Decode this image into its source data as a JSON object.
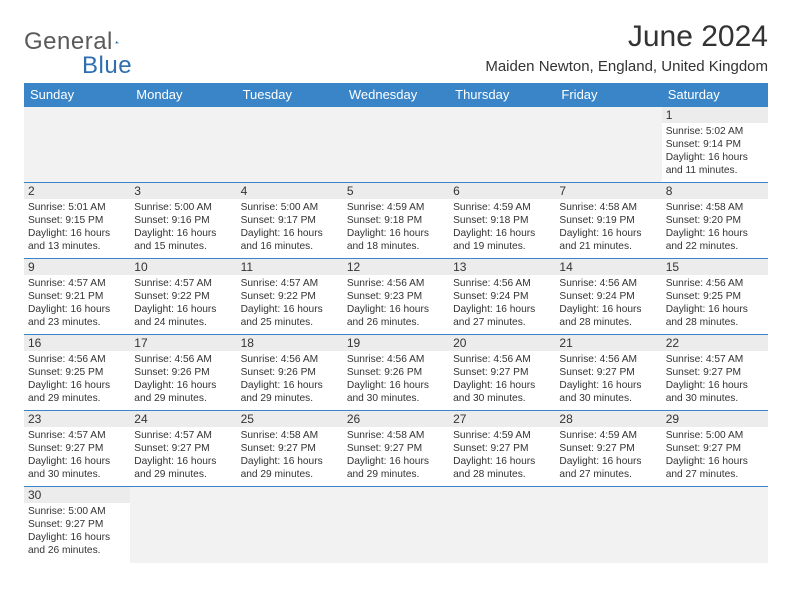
{
  "brand": {
    "text1": "General",
    "text2": "Blue"
  },
  "title": "June 2024",
  "location": "Maiden Newton, England, United Kingdom",
  "colors": {
    "header_bg": "#3a85c7",
    "header_fg": "#ffffff",
    "rule": "#3a85c7",
    "daynum_bg": "#ececec",
    "empty_bg": "#f2f2f2",
    "brand_gray": "#5a5a5a",
    "brand_blue": "#2f6fb0"
  },
  "day_headers": [
    "Sunday",
    "Monday",
    "Tuesday",
    "Wednesday",
    "Thursday",
    "Friday",
    "Saturday"
  ],
  "weeks": [
    [
      {
        "empty": true
      },
      {
        "empty": true
      },
      {
        "empty": true
      },
      {
        "empty": true
      },
      {
        "empty": true
      },
      {
        "empty": true
      },
      {
        "num": "1",
        "sunrise": "5:02 AM",
        "sunset": "9:14 PM",
        "daylight": "16 hours and 11 minutes."
      }
    ],
    [
      {
        "num": "2",
        "sunrise": "5:01 AM",
        "sunset": "9:15 PM",
        "daylight": "16 hours and 13 minutes."
      },
      {
        "num": "3",
        "sunrise": "5:00 AM",
        "sunset": "9:16 PM",
        "daylight": "16 hours and 15 minutes."
      },
      {
        "num": "4",
        "sunrise": "5:00 AM",
        "sunset": "9:17 PM",
        "daylight": "16 hours and 16 minutes."
      },
      {
        "num": "5",
        "sunrise": "4:59 AM",
        "sunset": "9:18 PM",
        "daylight": "16 hours and 18 minutes."
      },
      {
        "num": "6",
        "sunrise": "4:59 AM",
        "sunset": "9:18 PM",
        "daylight": "16 hours and 19 minutes."
      },
      {
        "num": "7",
        "sunrise": "4:58 AM",
        "sunset": "9:19 PM",
        "daylight": "16 hours and 21 minutes."
      },
      {
        "num": "8",
        "sunrise": "4:58 AM",
        "sunset": "9:20 PM",
        "daylight": "16 hours and 22 minutes."
      }
    ],
    [
      {
        "num": "9",
        "sunrise": "4:57 AM",
        "sunset": "9:21 PM",
        "daylight": "16 hours and 23 minutes."
      },
      {
        "num": "10",
        "sunrise": "4:57 AM",
        "sunset": "9:22 PM",
        "daylight": "16 hours and 24 minutes."
      },
      {
        "num": "11",
        "sunrise": "4:57 AM",
        "sunset": "9:22 PM",
        "daylight": "16 hours and 25 minutes."
      },
      {
        "num": "12",
        "sunrise": "4:56 AM",
        "sunset": "9:23 PM",
        "daylight": "16 hours and 26 minutes."
      },
      {
        "num": "13",
        "sunrise": "4:56 AM",
        "sunset": "9:24 PM",
        "daylight": "16 hours and 27 minutes."
      },
      {
        "num": "14",
        "sunrise": "4:56 AM",
        "sunset": "9:24 PM",
        "daylight": "16 hours and 28 minutes."
      },
      {
        "num": "15",
        "sunrise": "4:56 AM",
        "sunset": "9:25 PM",
        "daylight": "16 hours and 28 minutes."
      }
    ],
    [
      {
        "num": "16",
        "sunrise": "4:56 AM",
        "sunset": "9:25 PM",
        "daylight": "16 hours and 29 minutes."
      },
      {
        "num": "17",
        "sunrise": "4:56 AM",
        "sunset": "9:26 PM",
        "daylight": "16 hours and 29 minutes."
      },
      {
        "num": "18",
        "sunrise": "4:56 AM",
        "sunset": "9:26 PM",
        "daylight": "16 hours and 29 minutes."
      },
      {
        "num": "19",
        "sunrise": "4:56 AM",
        "sunset": "9:26 PM",
        "daylight": "16 hours and 30 minutes."
      },
      {
        "num": "20",
        "sunrise": "4:56 AM",
        "sunset": "9:27 PM",
        "daylight": "16 hours and 30 minutes."
      },
      {
        "num": "21",
        "sunrise": "4:56 AM",
        "sunset": "9:27 PM",
        "daylight": "16 hours and 30 minutes."
      },
      {
        "num": "22",
        "sunrise": "4:57 AM",
        "sunset": "9:27 PM",
        "daylight": "16 hours and 30 minutes."
      }
    ],
    [
      {
        "num": "23",
        "sunrise": "4:57 AM",
        "sunset": "9:27 PM",
        "daylight": "16 hours and 30 minutes."
      },
      {
        "num": "24",
        "sunrise": "4:57 AM",
        "sunset": "9:27 PM",
        "daylight": "16 hours and 29 minutes."
      },
      {
        "num": "25",
        "sunrise": "4:58 AM",
        "sunset": "9:27 PM",
        "daylight": "16 hours and 29 minutes."
      },
      {
        "num": "26",
        "sunrise": "4:58 AM",
        "sunset": "9:27 PM",
        "daylight": "16 hours and 29 minutes."
      },
      {
        "num": "27",
        "sunrise": "4:59 AM",
        "sunset": "9:27 PM",
        "daylight": "16 hours and 28 minutes."
      },
      {
        "num": "28",
        "sunrise": "4:59 AM",
        "sunset": "9:27 PM",
        "daylight": "16 hours and 27 minutes."
      },
      {
        "num": "29",
        "sunrise": "5:00 AM",
        "sunset": "9:27 PM",
        "daylight": "16 hours and 27 minutes."
      }
    ],
    [
      {
        "num": "30",
        "sunrise": "5:00 AM",
        "sunset": "9:27 PM",
        "daylight": "16 hours and 26 minutes."
      },
      {
        "empty": true
      },
      {
        "empty": true
      },
      {
        "empty": true
      },
      {
        "empty": true
      },
      {
        "empty": true
      },
      {
        "empty": true
      }
    ]
  ]
}
